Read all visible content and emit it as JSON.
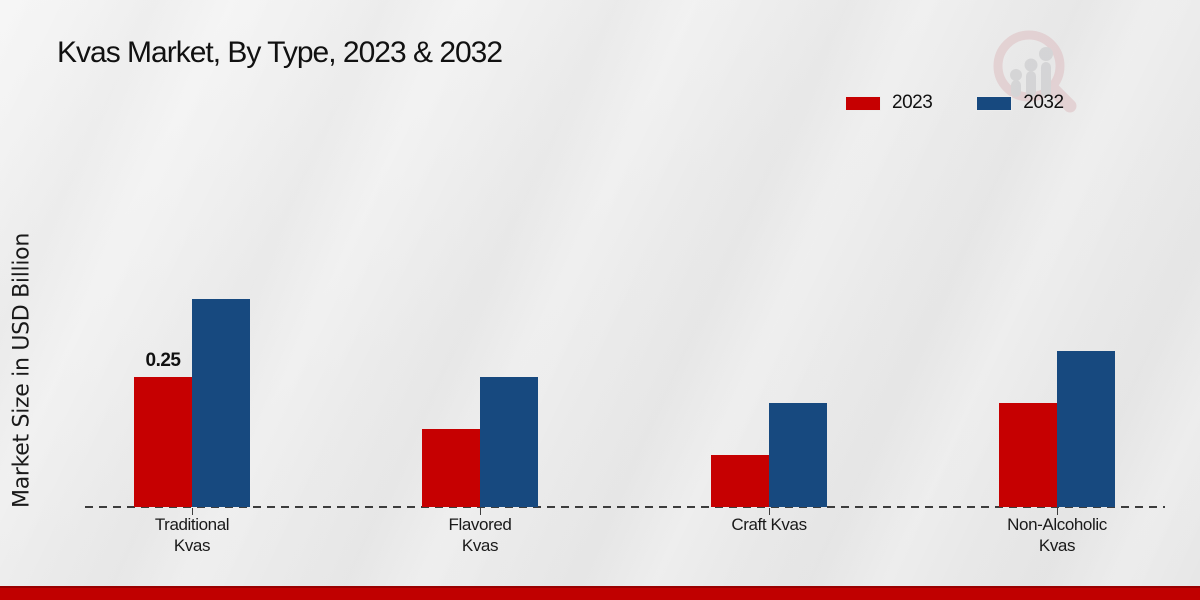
{
  "page": {
    "title": "Kvas Market, By Type, 2023 & 2032",
    "ylabel": "Market Size in USD Billion"
  },
  "watermark": {
    "name": "market-research-magnifier-logo"
  },
  "colors": {
    "series_2023": "#c60001",
    "series_2032": "#17497f",
    "footer_band": "#c00000",
    "baseline": "#3d3d3d",
    "text": "#1a1a1a",
    "watermark_pink": "#debfc2",
    "watermark_gray": "#c6c6c8"
  },
  "chart_data": {
    "type": "bar",
    "title": "Kvas Market, By Type, 2023 & 2032",
    "xlabel": "",
    "ylabel": "Market Size in USD Billion",
    "categories": [
      "Traditional Kvas",
      "Flavored Kvas",
      "Craft Kvas",
      "Non-Alcoholic Kvas"
    ],
    "category_label_lines": [
      [
        "Traditional",
        "Kvas"
      ],
      [
        "Flavored",
        "Kvas"
      ],
      [
        "Craft Kvas"
      ],
      [
        "Non-Alcoholic",
        "Kvas"
      ]
    ],
    "series": [
      {
        "name": "2023",
        "color": "#c60001",
        "values": [
          0.25,
          0.15,
          0.1,
          0.2
        ]
      },
      {
        "name": "2032",
        "color": "#17497f",
        "values": [
          0.4,
          0.25,
          0.2,
          0.3
        ]
      }
    ],
    "annotations": [
      {
        "series": "2023",
        "category": "Traditional Kvas",
        "text": "0.25"
      }
    ],
    "ylim": [
      0,
      0.45
    ],
    "grid": false,
    "y_axis_ticks_visible": false,
    "legend_position": "top-right",
    "baseline_style": "dashed"
  }
}
